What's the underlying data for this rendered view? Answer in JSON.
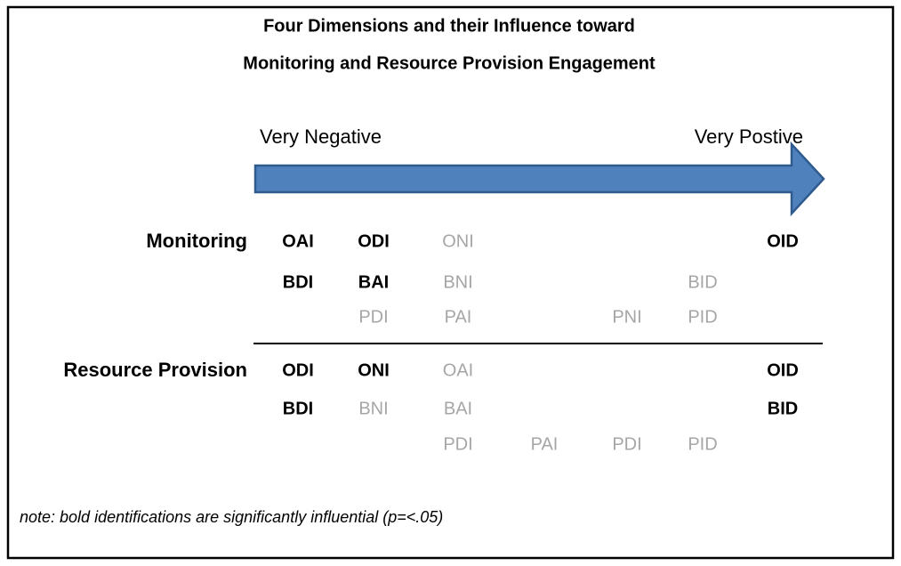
{
  "title": [
    "Four Dimensions and their Influence toward",
    "Monitoring and Resource Provision Engagement"
  ],
  "scale": {
    "left": "Very Negative",
    "right": "Very Postive"
  },
  "groups": [
    {
      "label": "Monitoring",
      "rows": [
        [
          {
            "text": "OAI",
            "bold": true
          },
          {
            "text": "ODI",
            "bold": true
          },
          {
            "text": "ONI",
            "bold": false
          },
          null,
          null,
          null,
          {
            "text": "OID",
            "bold": true
          }
        ],
        [
          {
            "text": "BDI",
            "bold": true
          },
          {
            "text": "BAI",
            "bold": true
          },
          {
            "text": "BNI",
            "bold": false
          },
          null,
          null,
          {
            "text": "BID",
            "bold": false
          },
          null
        ],
        [
          null,
          {
            "text": "PDI",
            "bold": false
          },
          {
            "text": "PAI",
            "bold": false
          },
          null,
          {
            "text": "PNI",
            "bold": false
          },
          {
            "text": "PID",
            "bold": false
          },
          null
        ]
      ]
    },
    {
      "label": "Resource Provision",
      "rows": [
        [
          {
            "text": "ODI",
            "bold": true
          },
          {
            "text": "ONI",
            "bold": true
          },
          {
            "text": "OAI",
            "bold": false
          },
          null,
          null,
          null,
          {
            "text": "OID",
            "bold": true
          }
        ],
        [
          {
            "text": "BDI",
            "bold": true
          },
          {
            "text": "BNI",
            "bold": false
          },
          {
            "text": "BAI",
            "bold": false
          },
          null,
          null,
          null,
          {
            "text": "BID",
            "bold": true
          }
        ],
        [
          null,
          null,
          {
            "text": "PDI",
            "bold": false
          },
          {
            "text": "PAI",
            "bold": false
          },
          {
            "text": "PDI",
            "bold": false
          },
          {
            "text": "PID",
            "bold": false
          },
          null
        ]
      ]
    }
  ],
  "note": "note: bold identifications are significantly influential (p=<.05)"
}
